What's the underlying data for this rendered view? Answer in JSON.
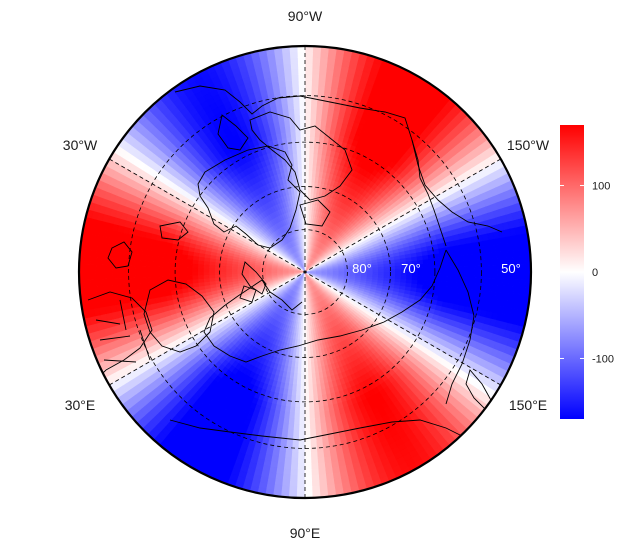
{
  "map": {
    "projection": "north-polar stereographic",
    "center_latitude": 90,
    "min_latitude": 40,
    "meridian_labels": [
      {
        "key": "w90",
        "text": "90°W"
      },
      {
        "key": "w30",
        "text": "30°W"
      },
      {
        "key": "w150",
        "text": "150°W"
      },
      {
        "key": "e30",
        "text": "30°E"
      },
      {
        "key": "e150",
        "text": "150°E"
      },
      {
        "key": "e90",
        "text": "90°E"
      }
    ],
    "parallel_labels": [
      {
        "key": "p80",
        "text": "80°"
      },
      {
        "key": "p70",
        "text": "70°"
      },
      {
        "key": "p50",
        "text": "50°"
      }
    ],
    "field": {
      "description": "zonal wave pattern",
      "positive_color": "#ff0000",
      "neutral_color": "#ffffff",
      "negative_color": "#0000ff"
    }
  },
  "colorbar": {
    "min": -170,
    "max": 170,
    "ticks": [
      {
        "value": 100,
        "label": "100"
      },
      {
        "value": 0,
        "label": "0"
      },
      {
        "value": -100,
        "label": "-100"
      }
    ],
    "colors": {
      "top": "#ff0000",
      "middle": "#ffffff",
      "bottom": "#0000ff"
    }
  }
}
